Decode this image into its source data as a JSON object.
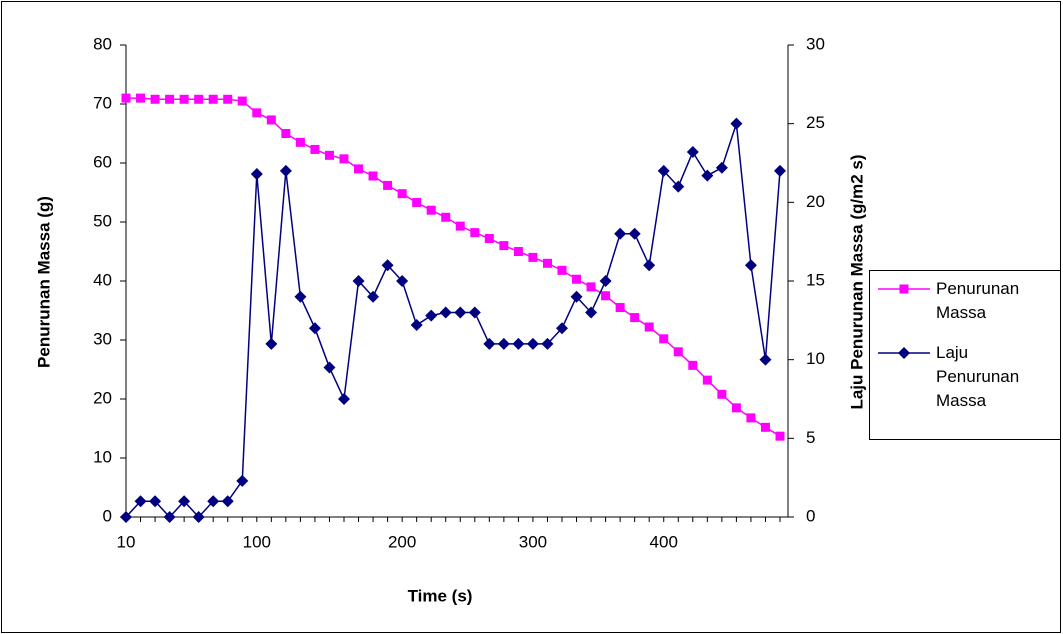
{
  "chart_data": {
    "type": "line",
    "x_label": "Time (s)",
    "y_label": "Penurunan Massa (g)",
    "y2_label": "Laju Penurunan Massa (g/m2 s)",
    "categories": [
      "10",
      null,
      null,
      null,
      null,
      null,
      null,
      null,
      null,
      "100",
      null,
      null,
      null,
      null,
      null,
      null,
      null,
      null,
      null,
      "200",
      null,
      null,
      null,
      null,
      null,
      null,
      null,
      null,
      "300",
      null,
      null,
      null,
      null,
      null,
      null,
      null,
      null,
      "400",
      null,
      null,
      null,
      null,
      null,
      null,
      null,
      null
    ],
    "ylim": [
      0,
      80
    ],
    "yticks": [
      0,
      10,
      20,
      30,
      40,
      50,
      60,
      70,
      80
    ],
    "y2lim": [
      0,
      30
    ],
    "y2ticks": [
      0,
      5,
      10,
      15,
      20,
      25,
      30
    ],
    "legend": "right",
    "series": [
      {
        "name": "Penurunan Massa",
        "color": "#ff00ff",
        "marker": "square",
        "values": [
          71,
          71,
          70.8,
          70.8,
          70.8,
          70.8,
          70.8,
          70.8,
          70.5,
          68.5,
          67.3,
          65,
          63.5,
          62.3,
          61.3,
          60.7,
          59,
          57.8,
          56.2,
          54.8,
          53.3,
          52,
          50.8,
          49.3,
          48.2,
          47.2,
          46,
          45,
          44,
          43,
          41.8,
          40.3,
          39,
          37.5,
          35.5,
          33.8,
          32.2,
          30.2,
          28,
          25.7,
          23.2,
          20.8,
          18.5,
          16.8,
          15.2,
          13.7
        ]
      },
      {
        "name": "Laju Penurunan Massa",
        "color": "#000080",
        "marker": "diamond",
        "axis": "y2",
        "values": [
          0,
          1,
          1,
          0,
          1,
          0,
          1,
          1,
          2.3,
          21.8,
          11,
          22,
          14,
          12,
          9.5,
          7.5,
          15,
          14,
          16,
          15,
          12.2,
          12.8,
          13,
          13,
          13,
          11,
          11,
          11,
          11,
          11,
          12,
          14,
          13,
          15,
          18,
          18,
          16,
          22,
          21,
          23.2,
          21.7,
          22.2,
          25,
          16,
          10,
          22
        ]
      }
    ]
  }
}
